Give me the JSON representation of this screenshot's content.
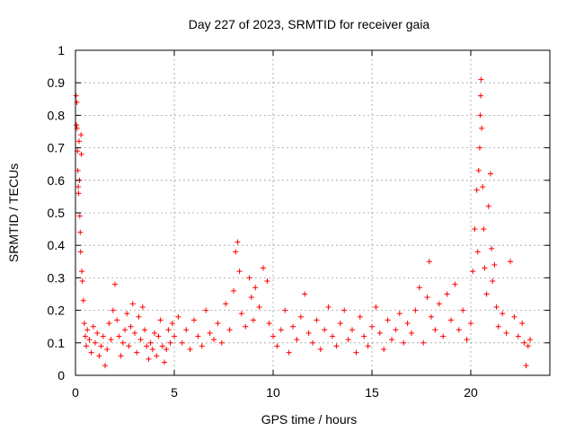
{
  "chart_data": {
    "type": "scatter",
    "title": "Day 227 of 2023, SRMTID for receiver gaia",
    "xlabel": "GPS time / hours",
    "ylabel": "SRMTID / TECUs",
    "xlim": [
      0,
      24
    ],
    "ylim": [
      0,
      1
    ],
    "xticks": [
      0,
      5,
      10,
      15,
      20
    ],
    "xtick_labels": [
      "0",
      "5",
      "10",
      "15",
      "20"
    ],
    "yticks": [
      0,
      0.1,
      0.2,
      0.3,
      0.4,
      0.5,
      0.6,
      0.7,
      0.8,
      0.9,
      1
    ],
    "ytick_labels": [
      "0",
      "0.1",
      "0.2",
      "0.3",
      "0.4",
      "0.5",
      "0.6",
      "0.7",
      "0.8",
      "0.9",
      "1"
    ],
    "grid": true,
    "marker": "+",
    "color": "#ff0000",
    "series": [
      {
        "name": "SRMTID",
        "points": [
          [
            0.03,
            0.86
          ],
          [
            0.05,
            0.77
          ],
          [
            0.07,
            0.84
          ],
          [
            0.08,
            0.76
          ],
          [
            0.1,
            0.69
          ],
          [
            0.12,
            0.63
          ],
          [
            0.14,
            0.58
          ],
          [
            0.16,
            0.56
          ],
          [
            0.18,
            0.72
          ],
          [
            0.2,
            0.6
          ],
          [
            0.22,
            0.49
          ],
          [
            0.24,
            0.44
          ],
          [
            0.26,
            0.38
          ],
          [
            0.28,
            0.74
          ],
          [
            0.3,
            0.68
          ],
          [
            0.32,
            0.32
          ],
          [
            0.35,
            0.29
          ],
          [
            0.4,
            0.23
          ],
          [
            0.45,
            0.16
          ],
          [
            0.5,
            0.12
          ],
          [
            0.55,
            0.09
          ],
          [
            0.6,
            0.14
          ],
          [
            0.7,
            0.11
          ],
          [
            0.8,
            0.07
          ],
          [
            0.9,
            0.15
          ],
          [
            1.0,
            0.1
          ],
          [
            1.1,
            0.13
          ],
          [
            1.2,
            0.06
          ],
          [
            1.3,
            0.09
          ],
          [
            1.4,
            0.12
          ],
          [
            1.5,
            0.03
          ],
          [
            1.6,
            0.08
          ],
          [
            1.7,
            0.16
          ],
          [
            1.8,
            0.11
          ],
          [
            1.9,
            0.2
          ],
          [
            2.0,
            0.28
          ],
          [
            2.1,
            0.17
          ],
          [
            2.2,
            0.12
          ],
          [
            2.3,
            0.06
          ],
          [
            2.4,
            0.1
          ],
          [
            2.5,
            0.14
          ],
          [
            2.6,
            0.19
          ],
          [
            2.7,
            0.09
          ],
          [
            2.8,
            0.15
          ],
          [
            2.9,
            0.22
          ],
          [
            3.0,
            0.13
          ],
          [
            3.1,
            0.07
          ],
          [
            3.2,
            0.18
          ],
          [
            3.3,
            0.11
          ],
          [
            3.4,
            0.21
          ],
          [
            3.5,
            0.14
          ],
          [
            3.6,
            0.09
          ],
          [
            3.7,
            0.05
          ],
          [
            3.8,
            0.1
          ],
          [
            3.9,
            0.08
          ],
          [
            4.0,
            0.13
          ],
          [
            4.1,
            0.06
          ],
          [
            4.2,
            0.12
          ],
          [
            4.3,
            0.17
          ],
          [
            4.4,
            0.09
          ],
          [
            4.5,
            0.04
          ],
          [
            4.6,
            0.08
          ],
          [
            4.7,
            0.14
          ],
          [
            4.8,
            0.1
          ],
          [
            4.9,
            0.16
          ],
          [
            5.0,
            0.12
          ],
          [
            5.2,
            0.18
          ],
          [
            5.4,
            0.1
          ],
          [
            5.6,
            0.14
          ],
          [
            5.8,
            0.08
          ],
          [
            6.0,
            0.17
          ],
          [
            6.2,
            0.12
          ],
          [
            6.4,
            0.09
          ],
          [
            6.6,
            0.2
          ],
          [
            6.8,
            0.13
          ],
          [
            7.0,
            0.11
          ],
          [
            7.2,
            0.16
          ],
          [
            7.4,
            0.1
          ],
          [
            7.6,
            0.22
          ],
          [
            7.8,
            0.14
          ],
          [
            8.0,
            0.26
          ],
          [
            8.1,
            0.38
          ],
          [
            8.2,
            0.41
          ],
          [
            8.3,
            0.32
          ],
          [
            8.4,
            0.19
          ],
          [
            8.6,
            0.15
          ],
          [
            8.8,
            0.3
          ],
          [
            8.9,
            0.24
          ],
          [
            9.0,
            0.17
          ],
          [
            9.1,
            0.27
          ],
          [
            9.3,
            0.21
          ],
          [
            9.5,
            0.33
          ],
          [
            9.7,
            0.29
          ],
          [
            9.8,
            0.16
          ],
          [
            10.0,
            0.12
          ],
          [
            10.2,
            0.09
          ],
          [
            10.4,
            0.14
          ],
          [
            10.6,
            0.2
          ],
          [
            10.8,
            0.07
          ],
          [
            11.0,
            0.15
          ],
          [
            11.2,
            0.11
          ],
          [
            11.4,
            0.18
          ],
          [
            11.6,
            0.25
          ],
          [
            11.8,
            0.13
          ],
          [
            12.0,
            0.1
          ],
          [
            12.2,
            0.17
          ],
          [
            12.4,
            0.08
          ],
          [
            12.6,
            0.14
          ],
          [
            12.8,
            0.21
          ],
          [
            13.0,
            0.12
          ],
          [
            13.2,
            0.09
          ],
          [
            13.4,
            0.16
          ],
          [
            13.6,
            0.2
          ],
          [
            13.8,
            0.11
          ],
          [
            14.0,
            0.14
          ],
          [
            14.2,
            0.07
          ],
          [
            14.4,
            0.18
          ],
          [
            14.6,
            0.12
          ],
          [
            14.8,
            0.09
          ],
          [
            15.0,
            0.15
          ],
          [
            15.2,
            0.21
          ],
          [
            15.4,
            0.13
          ],
          [
            15.6,
            0.08
          ],
          [
            15.8,
            0.17
          ],
          [
            16.0,
            0.11
          ],
          [
            16.2,
            0.14
          ],
          [
            16.4,
            0.19
          ],
          [
            16.6,
            0.1
          ],
          [
            16.8,
            0.16
          ],
          [
            17.0,
            0.13
          ],
          [
            17.2,
            0.2
          ],
          [
            17.4,
            0.27
          ],
          [
            17.6,
            0.1
          ],
          [
            17.8,
            0.24
          ],
          [
            17.9,
            0.35
          ],
          [
            18.0,
            0.18
          ],
          [
            18.2,
            0.14
          ],
          [
            18.4,
            0.22
          ],
          [
            18.6,
            0.12
          ],
          [
            18.8,
            0.25
          ],
          [
            19.0,
            0.17
          ],
          [
            19.2,
            0.28
          ],
          [
            19.4,
            0.14
          ],
          [
            19.6,
            0.2
          ],
          [
            19.8,
            0.11
          ],
          [
            20.0,
            0.16
          ],
          [
            20.1,
            0.32
          ],
          [
            20.2,
            0.45
          ],
          [
            20.3,
            0.57
          ],
          [
            20.35,
            0.38
          ],
          [
            20.4,
            0.63
          ],
          [
            20.45,
            0.7
          ],
          [
            20.48,
            0.8
          ],
          [
            20.5,
            0.86
          ],
          [
            20.52,
            0.91
          ],
          [
            20.55,
            0.76
          ],
          [
            20.6,
            0.58
          ],
          [
            20.65,
            0.45
          ],
          [
            20.7,
            0.33
          ],
          [
            20.8,
            0.25
          ],
          [
            20.9,
            0.52
          ],
          [
            21.0,
            0.62
          ],
          [
            21.05,
            0.39
          ],
          [
            21.1,
            0.29
          ],
          [
            21.2,
            0.34
          ],
          [
            21.3,
            0.21
          ],
          [
            21.4,
            0.15
          ],
          [
            21.6,
            0.19
          ],
          [
            21.8,
            0.13
          ],
          [
            22.0,
            0.35
          ],
          [
            22.2,
            0.18
          ],
          [
            22.4,
            0.12
          ],
          [
            22.6,
            0.16
          ],
          [
            22.7,
            0.1
          ],
          [
            22.8,
            0.03
          ],
          [
            22.9,
            0.09
          ],
          [
            23.0,
            0.11
          ]
        ]
      }
    ]
  }
}
